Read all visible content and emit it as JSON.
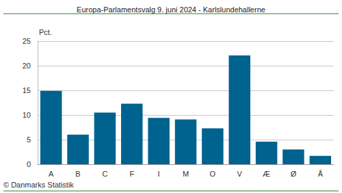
{
  "chart_data": {
    "type": "bar",
    "title": "Europa-Parlamentsvalg 9. juni 2024 - Karlslundehallerne",
    "y_label": "Pct.",
    "source": "© Danmarks Statistik",
    "categories": [
      "A",
      "B",
      "C",
      "F",
      "I",
      "M",
      "O",
      "V",
      "Æ",
      "Ø",
      "Å"
    ],
    "values": [
      14.9,
      6.0,
      10.5,
      12.3,
      9.4,
      9.1,
      7.3,
      22.1,
      4.6,
      3.0,
      1.7
    ],
    "color": "#00628f",
    "ylim": [
      0,
      25
    ],
    "yticks": [
      0,
      5,
      10,
      15,
      20,
      25
    ],
    "grid": true
  }
}
